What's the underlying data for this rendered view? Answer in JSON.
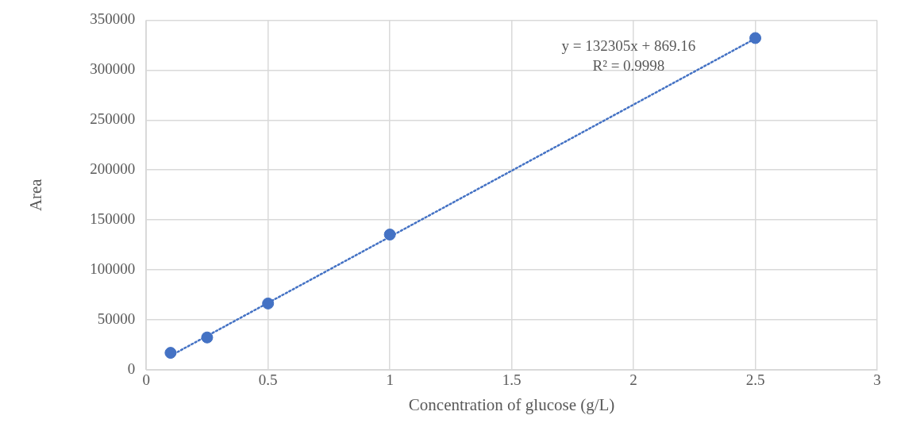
{
  "chart_data": {
    "type": "scatter",
    "xlabel": "Concentration of glucose (g/L)",
    "ylabel": "Area",
    "series": [
      {
        "color": "#4472c4",
        "x": [
          0.1,
          0.25,
          0.5,
          1,
          2.5
        ],
        "values": [
          17000,
          32400,
          66400,
          135400,
          332100
        ],
        "marker": "circle"
      },
      {
        "type": "line",
        "color": "#4472c4",
        "x": [
          0.1,
          2.5
        ],
        "values": [
          14100,
          331600
        ],
        "line_style": "dotted",
        "marker": "none"
      }
    ],
    "xlim": [
      0,
      3
    ],
    "xticks": [
      0,
      0.5,
      1,
      1.5,
      2,
      2.5,
      3
    ],
    "ylim": [
      0,
      350000
    ],
    "yticks": [
      0,
      50000,
      100000,
      150000,
      200000,
      250000,
      300000,
      350000
    ],
    "grid": true,
    "legend": false,
    "annotations": [
      "y = 132305x + 869.16",
      "R² = 0.9998"
    ]
  }
}
